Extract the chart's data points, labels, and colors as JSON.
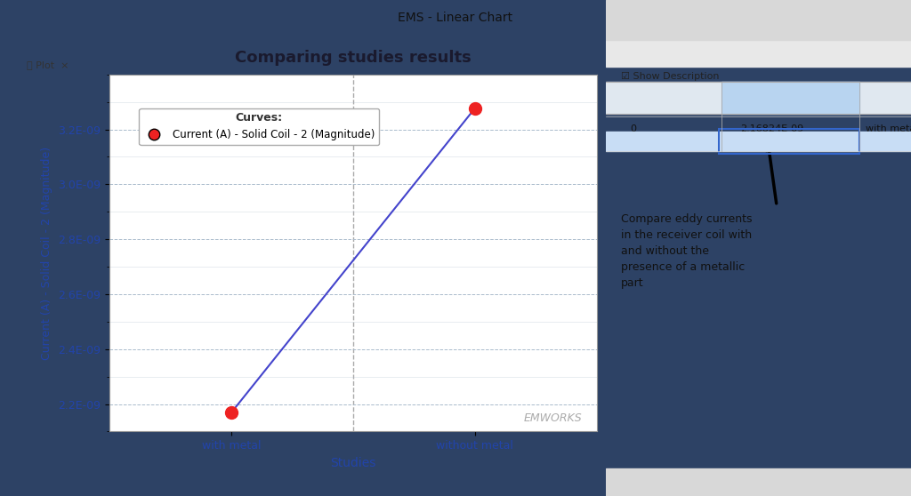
{
  "title": "Comparing studies results",
  "xlabel": "Studies",
  "ylabel": "Current (A) - Solid Coil - 2 (Magnitude)",
  "x_categories": [
    "with metal",
    "without metal"
  ],
  "y_values": [
    2.16824e-09,
    3.276389e-09
  ],
  "ylim_min": 2.1e-09,
  "ylim_max": 3.4e-09,
  "yticks": [
    2.2e-09,
    2.4e-09,
    2.6e-09,
    2.8e-09,
    3e-09,
    3.2e-09
  ],
  "line_color": "#4444cc",
  "marker_color": "#ee2222",
  "marker_size": 10,
  "legend_title": "Curves:",
  "legend_label": "Current (A) - Solid Coil - 2 (Magnitude)",
  "bg_outer": "#2d4265",
  "bg_chart": "#ffffff",
  "title_color": "#1a1a2e",
  "axis_label_color": "#2244aa",
  "tick_label_color": "#2244aa",
  "grid_color": "#aabbcc",
  "dashed_line_color": "#aaaaaa",
  "tab_bar_color": "#f5e070",
  "watermark_text": "EMWORKS"
}
